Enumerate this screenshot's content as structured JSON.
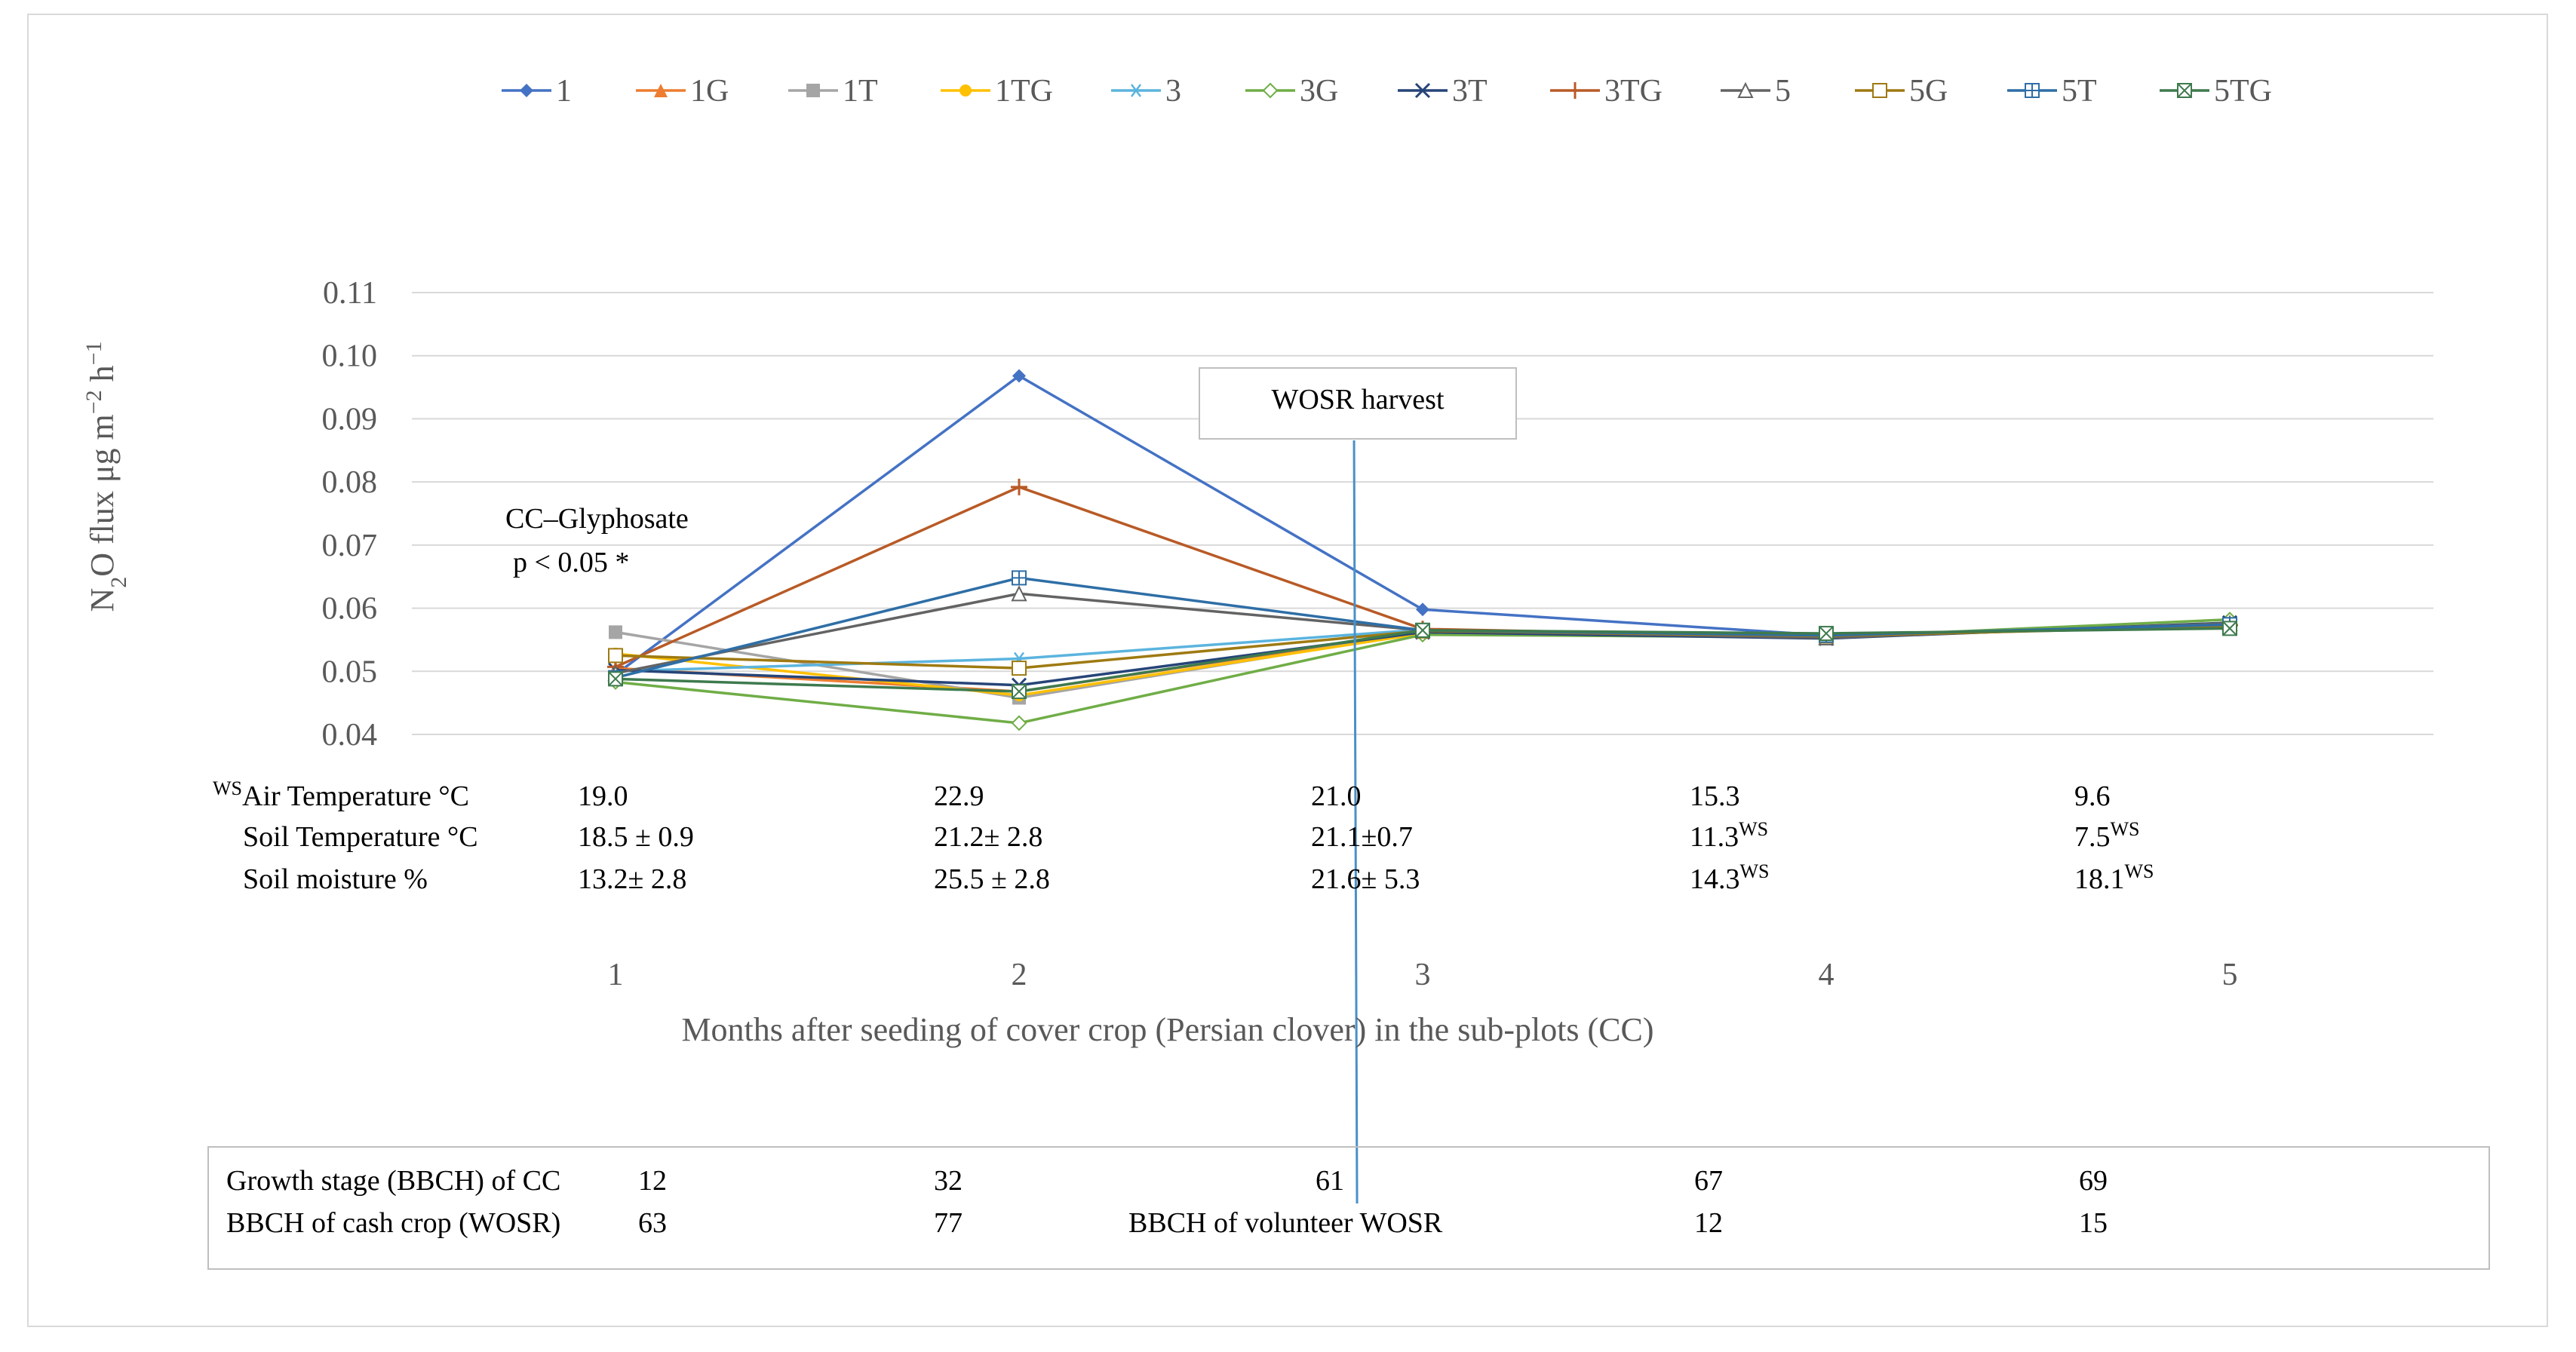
{
  "chart_data": {
    "type": "line",
    "x": [
      1,
      2,
      3,
      4,
      5
    ],
    "xlabel": "Months after seeding of cover crop (Persian clover) in the sub-plots (CC)",
    "ylabel_main": "N",
    "ylabel_sub": "2",
    "ylabel_mid": "O flux  μg m",
    "ylabel_sup": "−2",
    "ylabel_h": " h",
    "ylabel_sup2": "−1",
    "ylim": [
      0.04,
      0.11
    ],
    "yticks": [
      0.04,
      0.05,
      0.06,
      0.07,
      0.08,
      0.09,
      0.1,
      0.11
    ],
    "ytick_labels": [
      "0.04",
      "0.05",
      "0.06",
      "0.07",
      "0.08",
      "0.09",
      "0.10",
      "0.11"
    ],
    "xtick_labels": [
      "1",
      "2",
      "3",
      "4",
      "5"
    ],
    "grid": true,
    "legend_position": "top",
    "series": [
      {
        "name": "1",
        "color": "#4472C4",
        "marker": "diamond",
        "values": [
          0.0495,
          0.0968,
          0.0598,
          0.0557,
          0.0572
        ]
      },
      {
        "name": "1G",
        "color": "#ED7D31",
        "marker": "triangle",
        "values": [
          0.0505,
          0.0468,
          0.0563,
          0.0555,
          0.0573
        ]
      },
      {
        "name": "1T",
        "color": "#A5A5A5",
        "marker": "square",
        "values": [
          0.0562,
          0.0458,
          0.0562,
          0.0555,
          0.0576
        ]
      },
      {
        "name": "1TG",
        "color": "#FFC000",
        "marker": "circle",
        "values": [
          0.0528,
          0.0462,
          0.056,
          0.0554,
          0.0574
        ]
      },
      {
        "name": "3",
        "color": "#5BB4DE",
        "marker": "star",
        "values": [
          0.05,
          0.052,
          0.0566,
          0.0555,
          0.0575
        ]
      },
      {
        "name": "3G",
        "color": "#70AD47",
        "marker": "diamond-open",
        "values": [
          0.0483,
          0.0418,
          0.0558,
          0.0554,
          0.0582
        ]
      },
      {
        "name": "3T",
        "color": "#264478",
        "marker": "x",
        "values": [
          0.0502,
          0.0478,
          0.0562,
          0.0552,
          0.0577
        ]
      },
      {
        "name": "3TG",
        "color": "#B85A26",
        "marker": "plus",
        "values": [
          0.0507,
          0.0792,
          0.0567,
          0.0555,
          0.0573
        ]
      },
      {
        "name": "5",
        "color": "#636363",
        "marker": "triangle-open",
        "values": [
          0.0497,
          0.0623,
          0.0565,
          0.0553,
          0.0576
        ]
      },
      {
        "name": "5G",
        "color": "#9E7A12",
        "marker": "square-open",
        "values": [
          0.0525,
          0.0505,
          0.0564,
          0.0556,
          0.0571
        ]
      },
      {
        "name": "5T",
        "color": "#2E6EA6",
        "marker": "square-plus",
        "values": [
          0.049,
          0.0648,
          0.0565,
          0.0557,
          0.0574
        ]
      },
      {
        "name": "5TG",
        "color": "#3E7A4E",
        "marker": "square-x",
        "values": [
          0.0488,
          0.0468,
          0.0565,
          0.056,
          0.0568
        ]
      }
    ],
    "annotations": {
      "glyphosate_line1": "CC–Glyphosate",
      "glyphosate_line2": "p < 0.05 *",
      "harvest_label": "WOSR harvest",
      "harvest_month": 2.83
    },
    "conditions": {
      "rows": [
        {
          "prefix": "WS",
          "label": "Air Temperature °C",
          "values": [
            "19.0",
            "22.9",
            "21.0",
            "15.3",
            "9.6"
          ],
          "suffixes": [
            "",
            "",
            "",
            "",
            ""
          ]
        },
        {
          "prefix": "",
          "label": "Soil Temperature °C",
          "values": [
            "18.5 ± 0.9",
            "21.2± 2.8",
            "21.1±0.7",
            "11.3",
            "7.5"
          ],
          "suffixes": [
            "",
            "",
            "",
            "WS",
            "WS"
          ]
        },
        {
          "prefix": "",
          "label": "Soil moisture %",
          "values": [
            "13.2± 2.8",
            "25.5 ± 2.8",
            "21.6± 5.3",
            "14.3",
            "18.1"
          ],
          "suffixes": [
            "",
            "",
            "",
            "WS",
            "WS"
          ]
        }
      ]
    },
    "growth_table": {
      "row1_label": "Growth stage (BBCH) of CC",
      "row1_values": [
        "12",
        "32",
        "61",
        "67",
        "69"
      ],
      "row2_label": "BBCH of cash crop (WOSR)",
      "row2_values": [
        "63",
        "77",
        "",
        "12",
        "15"
      ],
      "row2_mid_label": "BBCH  of volunteer WOSR"
    }
  }
}
